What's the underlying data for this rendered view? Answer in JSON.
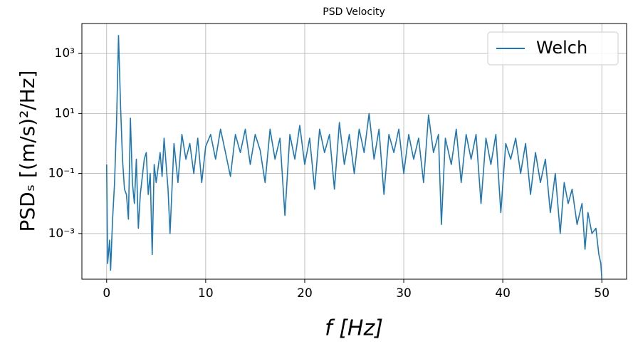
{
  "chart_data": {
    "type": "line",
    "title": "PSD Velocity",
    "x_label": "f [Hz]",
    "y_label": "PSDₛ [(m/s)²/Hz]",
    "log_y": true,
    "grid": true,
    "legend": "upper right",
    "xlim": [
      -2.5,
      52.5
    ],
    "xticks": [
      0,
      10,
      20,
      30,
      40,
      50
    ],
    "ylim": [
      3e-05,
      10000
    ],
    "yticks": [
      {
        "value": 0.001,
        "label": "10⁻³"
      },
      {
        "value": 0.1,
        "label": "10⁻¹"
      },
      {
        "value": 10,
        "label": "10¹"
      },
      {
        "value": 1000,
        "label": "10³"
      }
    ],
    "x": [
      0,
      0.1,
      0.3,
      0.4,
      0.6,
      0.8,
      1.0,
      1.2,
      1.4,
      1.6,
      1.8,
      2.0,
      2.2,
      2.4,
      2.6,
      2.8,
      3.0,
      3.2,
      3.4,
      3.8,
      4.0,
      4.2,
      4.4,
      4.6,
      4.8,
      5.0,
      5.4,
      5.6,
      5.8,
      6.2,
      6.4,
      6.8,
      7.2,
      7.6,
      8.0,
      8.4,
      8.8,
      9.2,
      9.6,
      10,
      10.5,
      11,
      11.5,
      12,
      12.5,
      13,
      13.5,
      14,
      14.5,
      15,
      15.5,
      16,
      16.5,
      17,
      17.5,
      18,
      18.5,
      19,
      19.5,
      20,
      20.5,
      21,
      21.5,
      22,
      22.5,
      23,
      23.5,
      24,
      24.5,
      25,
      25.5,
      26,
      26.5,
      27,
      27.5,
      28,
      28.5,
      29,
      29.5,
      30,
      30.5,
      31,
      31.5,
      32,
      32.5,
      33,
      33.5,
      33.8,
      34.2,
      34.8,
      35.3,
      35.8,
      36.3,
      36.8,
      37.3,
      37.8,
      38.3,
      38.8,
      39.3,
      39.8,
      40.3,
      40.8,
      41.3,
      41.8,
      42.3,
      42.8,
      43.3,
      43.8,
      44.3,
      44.8,
      45.3,
      45.8,
      46.2,
      46.6,
      47,
      47.5,
      48,
      48.3,
      48.6,
      49,
      49.4,
      49.7,
      49.9,
      50
    ],
    "series": [
      {
        "name": "Welch",
        "color": "#1f77b4",
        "values": [
          0.2,
          0.0001,
          0.0006,
          6e-05,
          0.003,
          0.05,
          5,
          4000,
          20,
          0.3,
          0.03,
          0.02,
          0.003,
          7,
          0.05,
          0.01,
          0.3,
          0.0015,
          0.02,
          0.3,
          0.5,
          0.02,
          0.1,
          0.0002,
          0.2,
          0.05,
          0.5,
          0.08,
          1.5,
          0.03,
          0.001,
          1,
          0.05,
          2,
          0.3,
          1,
          0.1,
          1.5,
          0.05,
          0.8,
          2,
          0.3,
          3,
          0.5,
          0.08,
          2,
          0.5,
          3,
          0.2,
          2,
          0.6,
          0.05,
          3,
          0.3,
          1.5,
          0.004,
          2,
          0.3,
          4,
          0.2,
          1.5,
          0.03,
          3,
          0.5,
          2,
          0.03,
          5,
          0.2,
          2,
          0.1,
          3,
          0.5,
          10,
          0.3,
          3,
          0.02,
          2,
          0.5,
          3,
          0.1,
          2,
          0.3,
          1.5,
          0.05,
          9,
          0.5,
          2,
          0.002,
          1.5,
          0.2,
          3,
          0.05,
          2,
          0.3,
          2,
          0.01,
          1.5,
          0.2,
          2,
          0.005,
          1,
          0.3,
          1.5,
          0.1,
          1,
          0.02,
          0.5,
          0.05,
          0.3,
          0.005,
          0.1,
          0.001,
          0.05,
          0.01,
          0.03,
          0.002,
          0.01,
          0.0003,
          0.005,
          0.001,
          0.0015,
          0.0002,
          0.0001,
          3e-05
        ]
      }
    ]
  }
}
